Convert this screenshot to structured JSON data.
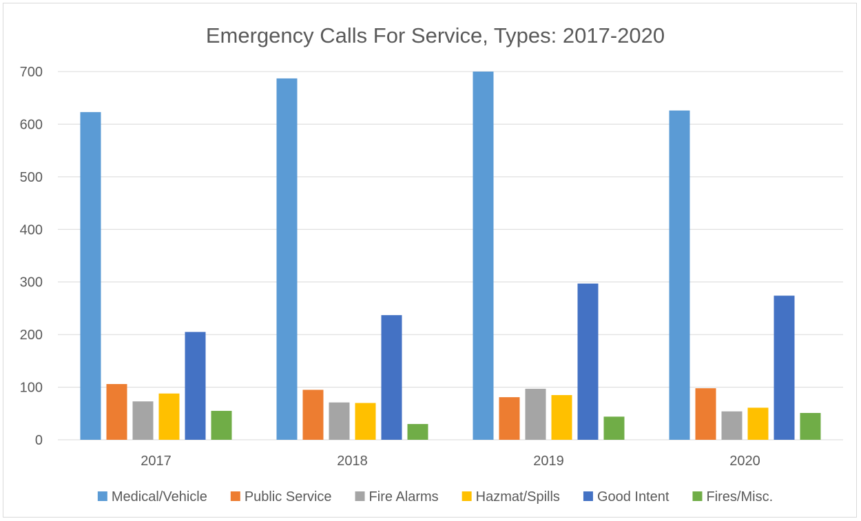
{
  "chart_data": {
    "type": "bar",
    "title": "Emergency Calls For Service, Types: 2017-2020",
    "xlabel": "",
    "ylabel": "",
    "categories": [
      "2017",
      "2018",
      "2019",
      "2020"
    ],
    "ylim": [
      0,
      700
    ],
    "yticks": [
      "0",
      "100",
      "200",
      "300",
      "400",
      "500",
      "600",
      "700"
    ],
    "grid": true,
    "legend_position": "bottom",
    "series": [
      {
        "name": "Medical/Vehicle",
        "color": "#5b9bd5",
        "values": [
          623,
          687,
          700,
          626
        ]
      },
      {
        "name": "Public Service",
        "color": "#ed7d31",
        "values": [
          106,
          95,
          81,
          98
        ]
      },
      {
        "name": "Fire Alarms",
        "color": "#a5a5a5",
        "values": [
          73,
          71,
          97,
          54
        ]
      },
      {
        "name": "Hazmat/Spills",
        "color": "#ffc000",
        "values": [
          88,
          70,
          85,
          61
        ]
      },
      {
        "name": "Good Intent",
        "color": "#4472c4",
        "values": [
          205,
          237,
          297,
          274
        ]
      },
      {
        "name": "Fires/Misc.",
        "color": "#70ad47",
        "values": [
          55,
          30,
          44,
          51
        ]
      }
    ]
  }
}
